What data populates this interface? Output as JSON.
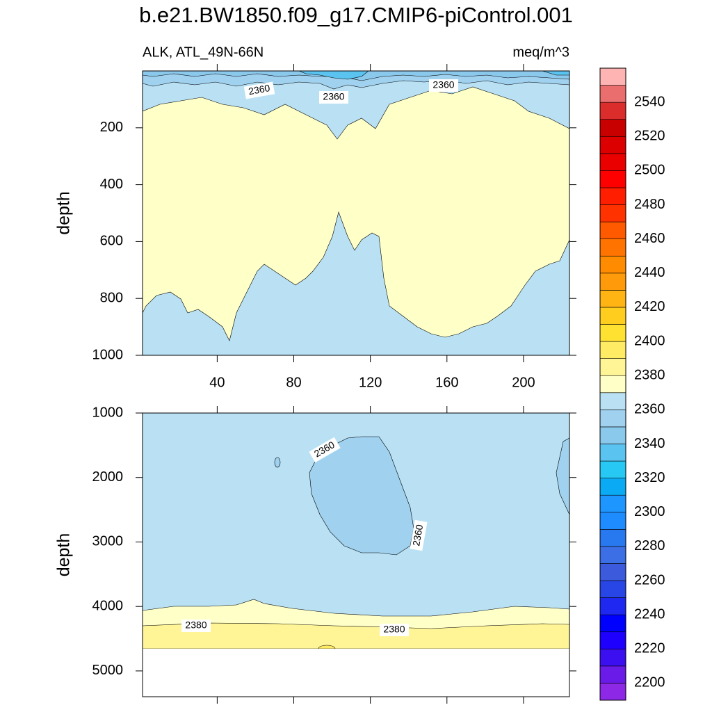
{
  "title": "b.e21.BW1850.f09_g17.CMIP6-piControl.001",
  "colorbar": {
    "limits": [
      2190,
      2560
    ],
    "ticks": [
      2200,
      2220,
      2240,
      2260,
      2280,
      2300,
      2320,
      2340,
      2360,
      2380,
      2400,
      2420,
      2440,
      2460,
      2480,
      2500,
      2520,
      2540
    ],
    "colors": [
      "#8c28e6",
      "#6a1be8",
      "#3c0ff0",
      "#1e00ff",
      "#0000ff",
      "#1e28f0",
      "#2846e6",
      "#3c5adc",
      "#3c6ee6",
      "#2878ef",
      "#1e8cff",
      "#1e96ff",
      "#0aaaf5",
      "#28c8f5",
      "#5ac3f0",
      "#8ac8ec",
      "#a0d2f0",
      "#b9e1f3",
      "#ffffc8",
      "#fff596",
      "#ffeb64",
      "#ffe132",
      "#ffcd1e",
      "#ffb414",
      "#ff9b0a",
      "#ff8c00",
      "#ff7300",
      "#ff5a00",
      "#ff3200",
      "#ff1e00",
      "#ff0000",
      "#eb0000",
      "#dc0000",
      "#c80000",
      "#dc2d2d",
      "#eb6e6e",
      "#ffb4b4"
    ]
  },
  "chart_data": [
    {
      "type": "contour",
      "left_label": "ALK, ATL_49N-66N",
      "right_label": "meq/m^3",
      "ylabel": "depth",
      "xlim": [
        1,
        224
      ],
      "xticks": [
        40,
        80,
        120,
        160,
        200
      ],
      "xtick_labels": true,
      "ylim": [
        0,
        1000
      ],
      "yticks": [
        200,
        400,
        600,
        800,
        1000
      ],
      "y_reversed": true,
      "contour_labels": [
        2360,
        2360,
        2360
      ]
    },
    {
      "type": "contour",
      "ylabel": "depth",
      "xlim": [
        1,
        224
      ],
      "xticks": [
        40,
        80,
        120,
        160,
        200
      ],
      "xtick_labels": false,
      "ylim": [
        1000,
        5400
      ],
      "yticks": [
        1000,
        2000,
        3000,
        4000,
        5000
      ],
      "y_reversed": true,
      "contour_labels": [
        2360,
        2360,
        2380,
        2380
      ]
    }
  ]
}
